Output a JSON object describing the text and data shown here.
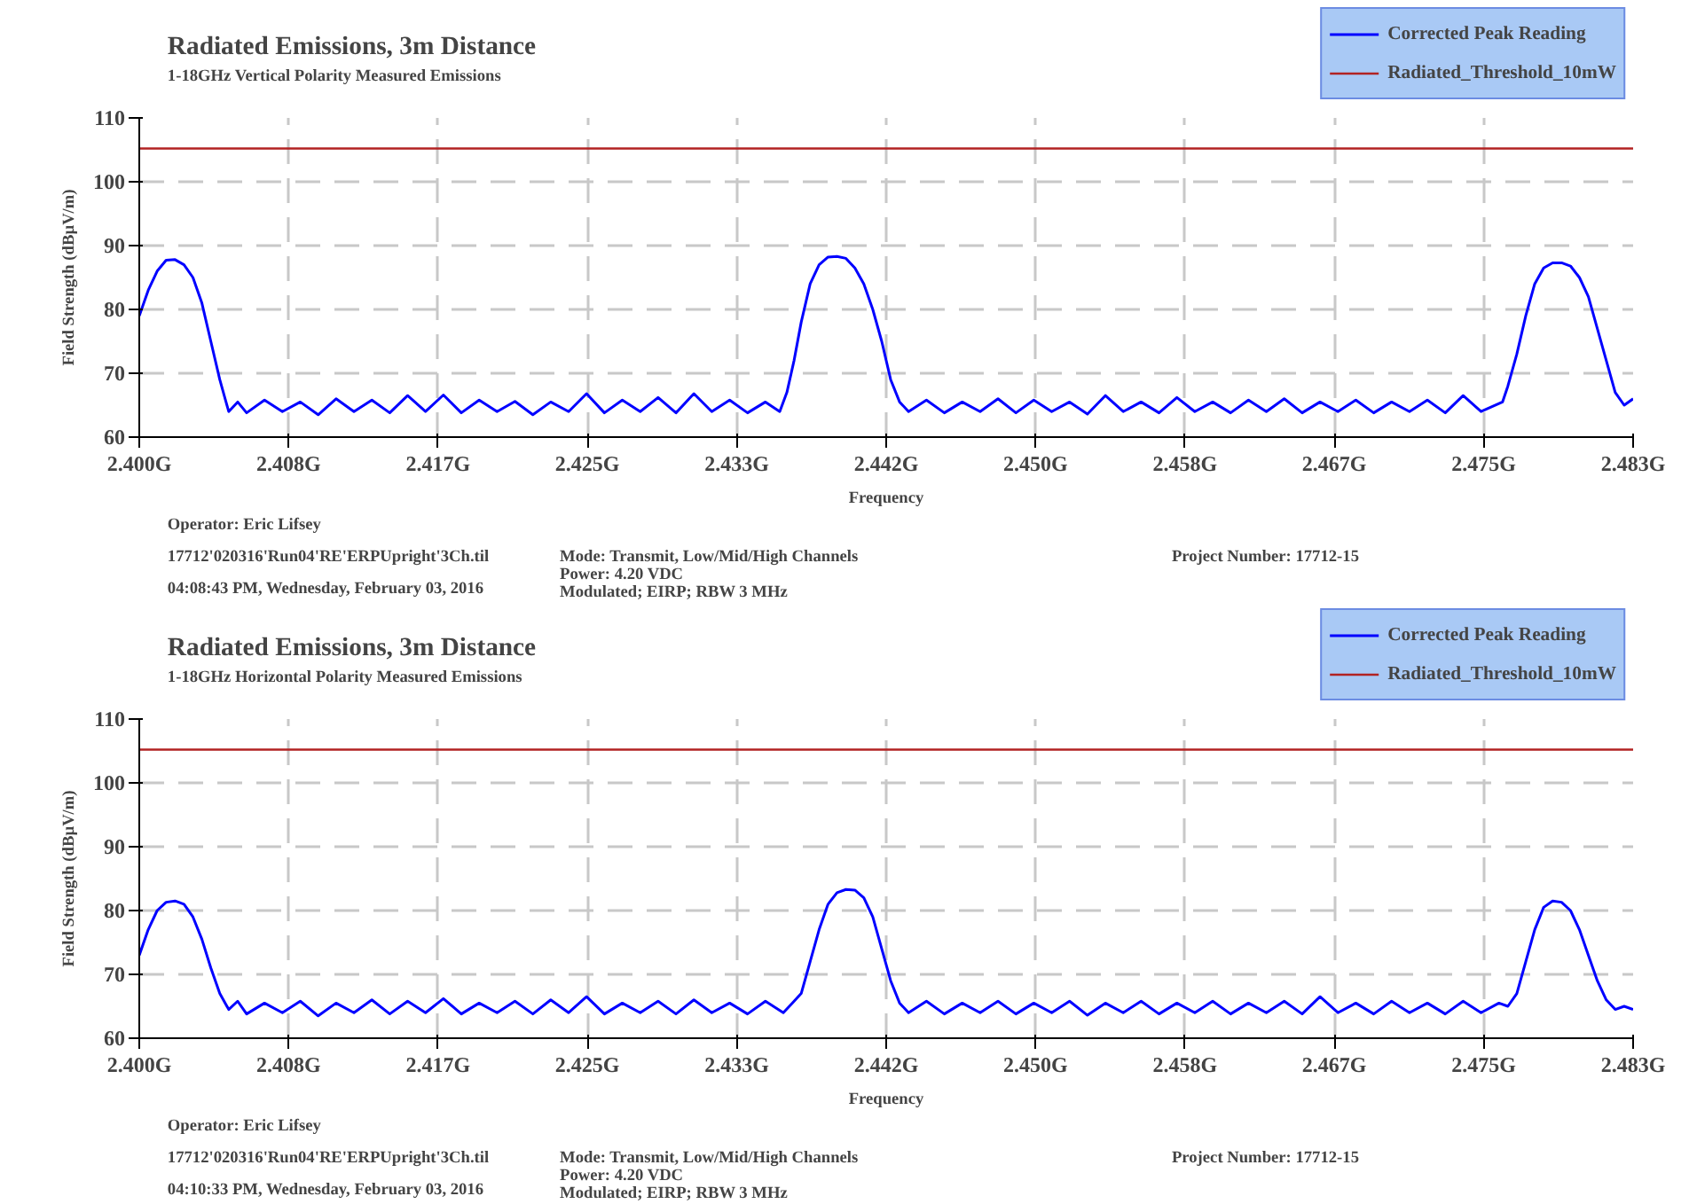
{
  "chart_data": [
    {
      "type": "line",
      "title": "Radiated Emissions, 3m Distance",
      "subtitle": "1-18GHz Vertical Polarity Measured Emissions",
      "xlabel": "Frequency",
      "ylabel": "Field Strength (dBµV/m)",
      "annotations": [
        "Operator: Eric Lifsey",
        "17712'020316'Run04'RE'ERPUpright'3Ch.til",
        "04:08:43 PM, Wednesday, February 03, 2016",
        "Mode: Transmit, Low/Mid/High Channels",
        "Power: 4.20 VDC",
        "Modulated; EIRP; RBW 3 MHz",
        "Project Number: 17712-15"
      ],
      "x": [
        2.4,
        2.4005,
        2.401,
        2.4015,
        2.402,
        2.4025,
        2.403,
        2.4035,
        2.404,
        2.4045,
        2.4048,
        2.405,
        2.4055,
        2.406,
        2.407,
        2.408,
        2.409,
        2.41,
        2.411,
        2.412,
        2.413,
        2.414,
        2.415,
        2.416,
        2.417,
        2.418,
        2.419,
        2.42,
        2.421,
        2.422,
        2.423,
        2.424,
        2.425,
        2.426,
        2.427,
        2.428,
        2.429,
        2.43,
        2.431,
        2.432,
        2.433,
        2.434,
        2.435,
        2.4358,
        2.4362,
        2.4366,
        2.437,
        2.4375,
        2.438,
        2.4385,
        2.439,
        2.4395,
        2.44,
        2.4405,
        2.441,
        2.4415,
        2.442,
        2.4425,
        2.443,
        2.444,
        2.445,
        2.446,
        2.447,
        2.448,
        2.449,
        2.45,
        2.451,
        2.452,
        2.453,
        2.454,
        2.455,
        2.456,
        2.457,
        2.458,
        2.459,
        2.46,
        2.461,
        2.462,
        2.463,
        2.464,
        2.465,
        2.466,
        2.467,
        2.468,
        2.469,
        2.47,
        2.471,
        2.472,
        2.473,
        2.474,
        2.475,
        2.4762,
        2.4765,
        2.477,
        2.4775,
        2.478,
        2.4785,
        2.479,
        2.4795,
        2.48,
        2.4805,
        2.481,
        2.4815,
        2.482,
        2.4825,
        2.483,
        2.4835
      ],
      "series": [
        {
          "name": "Corrected Peak Reading",
          "color": "#0000ff",
          "values": [
            79,
            83,
            86,
            87.7,
            87.8,
            87,
            85,
            81,
            75,
            69,
            66,
            64,
            65.5,
            63.8,
            65.8,
            64,
            65.5,
            63.5,
            66,
            64,
            65.8,
            63.8,
            66.5,
            64,
            66.6,
            63.8,
            65.8,
            64,
            65.6,
            63.5,
            65.5,
            64,
            66.8,
            63.8,
            65.8,
            64,
            66.2,
            63.8,
            66.8,
            64,
            65.8,
            63.8,
            65.5,
            64,
            67,
            72,
            78,
            84,
            87,
            88.2,
            88.3,
            88,
            86.5,
            84,
            80,
            75,
            69,
            65.5,
            64,
            65.8,
            63.8,
            65.5,
            64,
            66,
            63.8,
            65.8,
            64,
            65.5,
            63.6,
            66.5,
            64,
            65.5,
            63.8,
            66.2,
            64,
            65.5,
            63.8,
            65.8,
            64,
            66,
            63.8,
            65.5,
            64,
            65.8,
            63.8,
            65.5,
            64,
            65.8,
            63.8,
            66.5,
            64,
            65.5,
            68,
            73,
            79,
            84,
            86.5,
            87.3,
            87.3,
            86.8,
            85,
            82,
            77,
            72,
            67,
            65,
            66
          ]
        }
      ],
      "xlim": [
        2.4,
        2.4835
      ],
      "ylim": [
        60,
        110
      ],
      "xticks": [
        {
          "value": 2.4,
          "label": "2.400G"
        },
        {
          "value": 2.40835,
          "label": "2.408G"
        },
        {
          "value": 2.4167,
          "label": "2.417G"
        },
        {
          "value": 2.42505,
          "label": "2.425G"
        },
        {
          "value": 2.4334,
          "label": "2.433G"
        },
        {
          "value": 2.44175,
          "label": "2.442G"
        },
        {
          "value": 2.4501,
          "label": "2.450G"
        },
        {
          "value": 2.45845,
          "label": "2.458G"
        },
        {
          "value": 2.4668,
          "label": "2.467G"
        },
        {
          "value": 2.47515,
          "label": "2.475G"
        },
        {
          "value": 2.4835,
          "label": "2.483G"
        }
      ],
      "yticks": [
        60,
        70,
        80,
        90,
        100,
        110
      ],
      "ref_lines": [
        {
          "axis": "y",
          "value": 105.2,
          "label": "Radiated_Threshold_10mW",
          "color": "#b22222"
        }
      ],
      "grid": true,
      "legend": "top right",
      "line_style": "solid"
    },
    {
      "type": "line",
      "title": "Radiated Emissions, 3m Distance",
      "subtitle": "1-18GHz Horizontal Polarity Measured Emissions",
      "xlabel": "Frequency",
      "ylabel": "Field Strength (dBµV/m)",
      "annotations": [
        "Operator: Eric Lifsey",
        "17712'020316'Run04'RE'ERPUpright'3Ch.til",
        "04:10:33 PM, Wednesday, February 03, 2016",
        "Mode: Transmit, Low/Mid/High Channels",
        "Power: 4.20 VDC",
        "Modulated; EIRP; RBW 3 MHz",
        "Project Number: 17712-15"
      ],
      "x": [
        2.4,
        2.4005,
        2.401,
        2.4015,
        2.402,
        2.4025,
        2.403,
        2.4035,
        2.404,
        2.4045,
        2.405,
        2.4055,
        2.406,
        2.407,
        2.408,
        2.409,
        2.41,
        2.411,
        2.412,
        2.413,
        2.414,
        2.415,
        2.416,
        2.417,
        2.418,
        2.419,
        2.42,
        2.421,
        2.422,
        2.423,
        2.424,
        2.425,
        2.426,
        2.427,
        2.428,
        2.429,
        2.43,
        2.431,
        2.432,
        2.433,
        2.434,
        2.435,
        2.436,
        2.4365,
        2.437,
        2.4375,
        2.438,
        2.4385,
        2.439,
        2.4395,
        2.44,
        2.4405,
        2.441,
        2.4415,
        2.442,
        2.4425,
        2.443,
        2.444,
        2.445,
        2.446,
        2.447,
        2.448,
        2.449,
        2.45,
        2.451,
        2.452,
        2.453,
        2.454,
        2.455,
        2.456,
        2.457,
        2.458,
        2.459,
        2.46,
        2.461,
        2.462,
        2.463,
        2.464,
        2.465,
        2.466,
        2.467,
        2.468,
        2.469,
        2.47,
        2.471,
        2.472,
        2.473,
        2.474,
        2.475,
        2.476,
        2.4765,
        2.477,
        2.4775,
        2.478,
        2.4785,
        2.479,
        2.4795,
        2.48,
        2.4805,
        2.481,
        2.4815,
        2.482,
        2.4825,
        2.483,
        2.4835
      ],
      "series": [
        {
          "name": "Corrected Peak Reading",
          "color": "#0000ff",
          "values": [
            73,
            77,
            80,
            81.3,
            81.5,
            81,
            79,
            75.5,
            71,
            67,
            64.5,
            65.8,
            63.8,
            65.5,
            64,
            65.8,
            63.5,
            65.5,
            64,
            66,
            63.8,
            65.8,
            64,
            66.2,
            63.8,
            65.5,
            64,
            65.8,
            63.8,
            66,
            64,
            66.5,
            63.8,
            65.5,
            64,
            65.8,
            63.8,
            66,
            64,
            65.5,
            63.8,
            65.8,
            64,
            65.5,
            67,
            72,
            77,
            81,
            82.8,
            83.3,
            83.2,
            82,
            79,
            74,
            69,
            65.5,
            64,
            65.8,
            63.8,
            65.5,
            64,
            65.8,
            63.8,
            65.5,
            64,
            65.8,
            63.6,
            65.5,
            64,
            65.8,
            63.8,
            65.5,
            64,
            65.8,
            63.8,
            65.5,
            64,
            65.8,
            63.8,
            66.5,
            64,
            65.5,
            63.8,
            65.8,
            64,
            65.5,
            63.8,
            65.8,
            64,
            65.5,
            65,
            67,
            72,
            77,
            80.5,
            81.5,
            81.3,
            80,
            77,
            73,
            69,
            66,
            64.5,
            65,
            64.5
          ]
        }
      ],
      "xlim": [
        2.4,
        2.4835
      ],
      "ylim": [
        60,
        110
      ],
      "xticks": [
        {
          "value": 2.4,
          "label": "2.400G"
        },
        {
          "value": 2.40835,
          "label": "2.408G"
        },
        {
          "value": 2.4167,
          "label": "2.417G"
        },
        {
          "value": 2.42505,
          "label": "2.425G"
        },
        {
          "value": 2.4334,
          "label": "2.433G"
        },
        {
          "value": 2.44175,
          "label": "2.442G"
        },
        {
          "value": 2.4501,
          "label": "2.450G"
        },
        {
          "value": 2.45845,
          "label": "2.458G"
        },
        {
          "value": 2.4668,
          "label": "2.467G"
        },
        {
          "value": 2.47515,
          "label": "2.475G"
        },
        {
          "value": 2.4835,
          "label": "2.483G"
        }
      ],
      "yticks": [
        60,
        70,
        80,
        90,
        100,
        110
      ],
      "ref_lines": [
        {
          "axis": "y",
          "value": 105.2,
          "label": "Radiated_Threshold_10mW",
          "color": "#b22222"
        }
      ],
      "grid": true,
      "legend": "top right",
      "line_style": "solid"
    }
  ]
}
